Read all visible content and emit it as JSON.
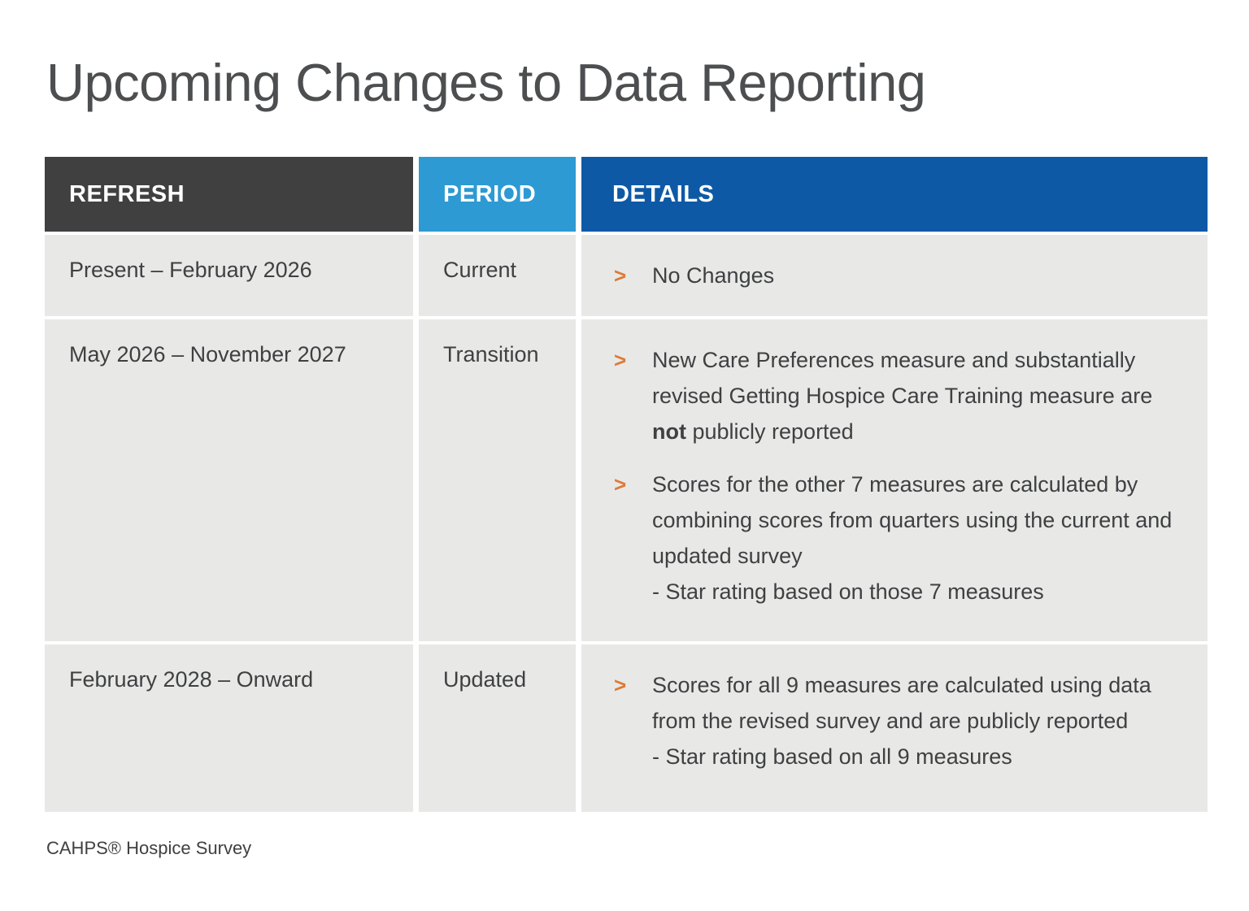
{
  "title": "Upcoming Changes to Data Reporting",
  "footer": "CAHPS® Hospice Survey",
  "colors": {
    "title": "#4c4e50",
    "text": "#3f4042",
    "header_dark": "#404041",
    "header_light_blue": "#2d9ad3",
    "header_dark_blue": "#0e59a6",
    "row_bg": "#e8e8e7",
    "accent_orange": "#dd7a35"
  },
  "bullet_glyph": ">",
  "table": {
    "headers": [
      {
        "label": "REFRESH"
      },
      {
        "label": "PERIOD"
      },
      {
        "label": "DETAILS"
      }
    ],
    "rows": [
      {
        "refresh": "Present – February 2026",
        "period": "Current",
        "bullets": [
          {
            "text": "No Changes"
          }
        ]
      },
      {
        "refresh": "May 2026 – November 2027",
        "period": "Transition",
        "bullets": [
          {
            "text_before_bold": "New Care Preferences measure and substantially revised Getting Hospice Care Training measure are ",
            "bold_text": "not",
            "text_after_bold": " publicly reported"
          },
          {
            "text": "Scores for the other 7 measures are calculated by combining scores from quarters using the current and updated survey",
            "subline": "- Star rating based on those 7 measures"
          }
        ]
      },
      {
        "refresh": "February 2028 – Onward",
        "period": "Updated",
        "bullets": [
          {
            "text": "Scores for all 9 measures are calculated using data from the revised survey and are publicly reported",
            "subline": "- Star rating based on all 9 measures"
          }
        ]
      }
    ]
  }
}
